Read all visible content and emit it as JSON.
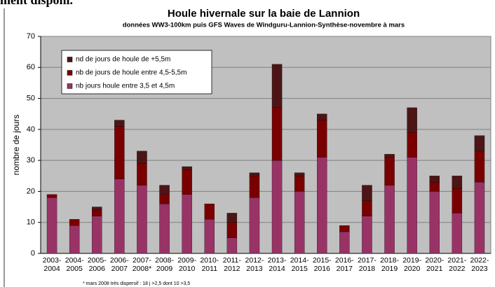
{
  "top_fragment": "ment disponi.",
  "chart_data": {
    "type": "stacked_bar",
    "title": "Houle hivernale sur la baie de Lannion",
    "subtitle": "données WW3-100km puis GFS Waves de Windguru-Lannion-Synthèse-novembre à mars",
    "y_label": "nombre de jours",
    "footnote": "* mars 2008 très dispersif : 18 j >2,5 dont 10 >3,5",
    "categories": [
      [
        "2003-",
        "2004"
      ],
      [
        "2004-",
        "2005"
      ],
      [
        "2005-",
        "2006"
      ],
      [
        "2006-",
        "2007"
      ],
      [
        "2007-",
        "2008*"
      ],
      [
        "2008-",
        "2009"
      ],
      [
        "2009-",
        "2010"
      ],
      [
        "2010-",
        "2011"
      ],
      [
        "2011-",
        "2012"
      ],
      [
        "2012-",
        "2013"
      ],
      [
        "2013-",
        "2014"
      ],
      [
        "2014-",
        "2015"
      ],
      [
        "2015-",
        "2016"
      ],
      [
        "2016-",
        "2017"
      ],
      [
        "2017-",
        "2018"
      ],
      [
        "2018-",
        "2019"
      ],
      [
        "2019-",
        "2020"
      ],
      [
        "2020-",
        "2021"
      ],
      [
        "2021-",
        "2022"
      ],
      [
        "2022-",
        "2023"
      ]
    ],
    "series": [
      {
        "name": "nb jours houle entre 3,5 et 4,5m",
        "color": "#993366",
        "values": [
          18,
          9,
          12,
          24,
          22,
          16,
          19,
          11,
          5,
          18,
          30,
          20,
          31,
          7,
          12,
          22,
          31,
          20,
          13,
          23
        ]
      },
      {
        "name": "nb de jours de houle entre 4,5-5,5m",
        "color": "#7a0000",
        "values": [
          1,
          2,
          2,
          17,
          7,
          3,
          8,
          5,
          5,
          7,
          17,
          5,
          12,
          2,
          5,
          9,
          8,
          3,
          8,
          10
        ]
      },
      {
        "name": "nd de jours de houle de +5,5m",
        "color": "#4d1515",
        "values": [
          0,
          0,
          1,
          2,
          4,
          3,
          1,
          0,
          3,
          1,
          14,
          1,
          2,
          0,
          5,
          1,
          8,
          2,
          4,
          5
        ]
      }
    ],
    "ylim": [
      0,
      70
    ],
    "yticks": [
      0,
      10,
      20,
      30,
      40,
      50,
      60,
      70
    ],
    "grid": true,
    "legend": "top-left"
  }
}
